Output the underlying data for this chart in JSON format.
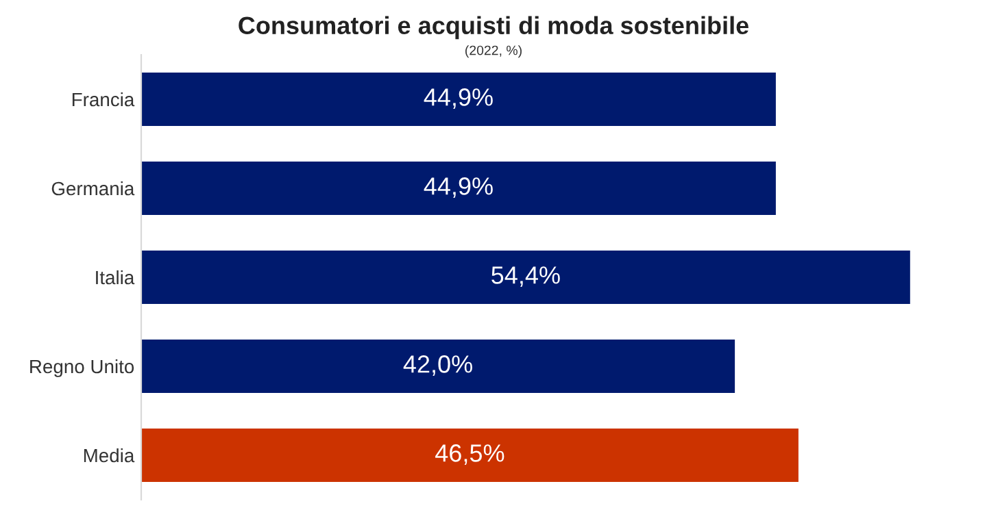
{
  "chart_data": {
    "type": "bar",
    "orientation": "horizontal",
    "title": "Consumatori e acquisti di moda sostenibile",
    "subtitle": "(2022, %)",
    "categories": [
      "Francia",
      "Germania",
      "Italia",
      "Regno Unito",
      "Media"
    ],
    "values": [
      44.9,
      44.9,
      54.4,
      42.0,
      46.5
    ],
    "value_labels": [
      "44,9%",
      "44,9%",
      "54,4%",
      "42,0%",
      "46,5%"
    ],
    "colors": [
      "#001a6e",
      "#001a6e",
      "#001a6e",
      "#001a6e",
      "#cc3300"
    ],
    "tick_labels": "y",
    "grid": false,
    "legend": false
  }
}
